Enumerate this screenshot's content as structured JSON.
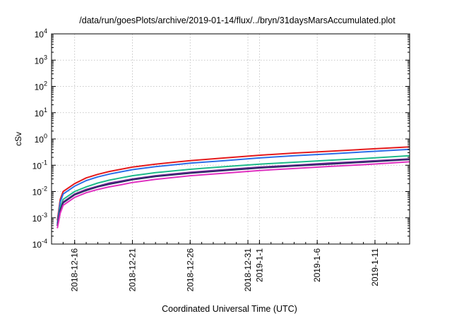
{
  "chart_data": {
    "type": "line",
    "title": "/data/run/goesPlots/archive/2019-01-14/flux/../bryn/31daysMarsAccumulated.plot",
    "xlabel": "Coordinated Universal Time (UTC)",
    "ylabel": "cSv",
    "yscale": "log",
    "ylim": [
      0.0001,
      10000
    ],
    "xlim": [
      "2018-12-14",
      "2019-01-14"
    ],
    "grid": true,
    "legend": "none",
    "y_ticks": [
      {
        "base": "10",
        "exp": "-4",
        "value": 0.0001
      },
      {
        "base": "10",
        "exp": "-3",
        "value": 0.001
      },
      {
        "base": "10",
        "exp": "-2",
        "value": 0.01
      },
      {
        "base": "10",
        "exp": "-1",
        "value": 0.1
      },
      {
        "base": "10",
        "exp": "0",
        "value": 1
      },
      {
        "base": "10",
        "exp": "1",
        "value": 10
      },
      {
        "base": "10",
        "exp": "2",
        "value": 100
      },
      {
        "base": "10",
        "exp": "3",
        "value": 1000
      },
      {
        "base": "10",
        "exp": "4",
        "value": 10000
      }
    ],
    "x_ticks": [
      {
        "label": "2018-12-16",
        "date": "2018-12-16"
      },
      {
        "label": "2018-12-21",
        "date": "2018-12-21"
      },
      {
        "label": "2018-12-26",
        "date": "2018-12-26"
      },
      {
        "label": "2018-12-31",
        "date": "2018-12-31"
      },
      {
        "label": "2019-1-1",
        "date": "2019-01-01"
      },
      {
        "label": "2019-1-6",
        "date": "2019-01-06"
      },
      {
        "label": "2019-1-11",
        "date": "2019-01-11"
      }
    ],
    "series": [
      {
        "color": "#e41a1c",
        "points": [
          [
            "2018-12-14T12:00",
            0.0008
          ],
          [
            "2018-12-14T18:00",
            0.005
          ],
          [
            "2018-12-15",
            0.01
          ],
          [
            "2018-12-16",
            0.02
          ],
          [
            "2018-12-17",
            0.033
          ],
          [
            "2018-12-18",
            0.045
          ],
          [
            "2018-12-19",
            0.058
          ],
          [
            "2018-12-20",
            0.07
          ],
          [
            "2018-12-21",
            0.085
          ],
          [
            "2018-12-23",
            0.11
          ],
          [
            "2018-12-26",
            0.15
          ],
          [
            "2018-12-29",
            0.19
          ],
          [
            "2019-01-01",
            0.24
          ],
          [
            "2019-01-04",
            0.29
          ],
          [
            "2019-01-07",
            0.34
          ],
          [
            "2019-01-10",
            0.4
          ],
          [
            "2019-01-14",
            0.5
          ]
        ]
      },
      {
        "color": "#2b6ee8",
        "points": [
          [
            "2018-12-14T12:00",
            0.0006
          ],
          [
            "2018-12-14T18:00",
            0.004
          ],
          [
            "2018-12-15",
            0.008
          ],
          [
            "2018-12-16",
            0.016
          ],
          [
            "2018-12-17",
            0.026
          ],
          [
            "2018-12-18",
            0.036
          ],
          [
            "2018-12-19",
            0.046
          ],
          [
            "2018-12-20",
            0.056
          ],
          [
            "2018-12-21",
            0.068
          ],
          [
            "2018-12-23",
            0.088
          ],
          [
            "2018-12-26",
            0.12
          ],
          [
            "2018-12-29",
            0.15
          ],
          [
            "2019-01-01",
            0.19
          ],
          [
            "2019-01-04",
            0.23
          ],
          [
            "2019-01-07",
            0.27
          ],
          [
            "2019-01-10",
            0.32
          ],
          [
            "2019-01-14",
            0.4
          ]
        ]
      },
      {
        "color": "#1fba8a",
        "points": [
          [
            "2018-12-14T12:00",
            0.0005
          ],
          [
            "2018-12-14T18:00",
            0.0025
          ],
          [
            "2018-12-15",
            0.005
          ],
          [
            "2018-12-16",
            0.01
          ],
          [
            "2018-12-17",
            0.015
          ],
          [
            "2018-12-18",
            0.021
          ],
          [
            "2018-12-19",
            0.027
          ],
          [
            "2018-12-20",
            0.033
          ],
          [
            "2018-12-21",
            0.04
          ],
          [
            "2018-12-23",
            0.052
          ],
          [
            "2018-12-26",
            0.07
          ],
          [
            "2018-12-29",
            0.088
          ],
          [
            "2019-01-01",
            0.11
          ],
          [
            "2019-01-04",
            0.13
          ],
          [
            "2019-01-07",
            0.155
          ],
          [
            "2019-01-10",
            0.18
          ],
          [
            "2019-01-14",
            0.23
          ]
        ]
      },
      {
        "color": "#7a2a9a",
        "points": [
          [
            "2018-12-14T12:00",
            0.0005
          ],
          [
            "2018-12-14T18:00",
            0.002
          ],
          [
            "2018-12-15",
            0.004
          ],
          [
            "2018-12-16",
            0.008
          ],
          [
            "2018-12-17",
            0.012
          ],
          [
            "2018-12-18",
            0.016
          ],
          [
            "2018-12-19",
            0.021
          ],
          [
            "2018-12-20",
            0.025
          ],
          [
            "2018-12-21",
            0.03
          ],
          [
            "2018-12-23",
            0.04
          ],
          [
            "2018-12-26",
            0.054
          ],
          [
            "2018-12-29",
            0.068
          ],
          [
            "2019-01-01",
            0.085
          ],
          [
            "2019-01-04",
            0.1
          ],
          [
            "2019-01-07",
            0.12
          ],
          [
            "2019-01-10",
            0.14
          ],
          [
            "2019-01-14",
            0.175
          ]
        ]
      },
      {
        "color": "#2c2a66",
        "points": [
          [
            "2018-12-14T12:00",
            0.0005
          ],
          [
            "2018-12-14T18:00",
            0.002
          ],
          [
            "2018-12-15",
            0.0037
          ],
          [
            "2018-12-16",
            0.0075
          ],
          [
            "2018-12-17",
            0.011
          ],
          [
            "2018-12-18",
            0.015
          ],
          [
            "2018-12-19",
            0.019
          ],
          [
            "2018-12-20",
            0.023
          ],
          [
            "2018-12-21",
            0.028
          ],
          [
            "2018-12-23",
            0.037
          ],
          [
            "2018-12-26",
            0.05
          ],
          [
            "2018-12-29",
            0.063
          ],
          [
            "2019-01-01",
            0.079
          ],
          [
            "2019-01-04",
            0.094
          ],
          [
            "2019-01-07",
            0.11
          ],
          [
            "2019-01-10",
            0.13
          ],
          [
            "2019-01-14",
            0.165
          ]
        ]
      },
      {
        "color": "#e030c0",
        "points": [
          [
            "2018-12-14T12:00",
            0.0004
          ],
          [
            "2018-12-14T18:00",
            0.0015
          ],
          [
            "2018-12-15",
            0.003
          ],
          [
            "2018-12-16",
            0.006
          ],
          [
            "2018-12-17",
            0.009
          ],
          [
            "2018-12-18",
            0.012
          ],
          [
            "2018-12-19",
            0.015
          ],
          [
            "2018-12-20",
            0.018
          ],
          [
            "2018-12-21",
            0.022
          ],
          [
            "2018-12-23",
            0.029
          ],
          [
            "2018-12-26",
            0.04
          ],
          [
            "2018-12-29",
            0.05
          ],
          [
            "2019-01-01",
            0.063
          ],
          [
            "2019-01-04",
            0.075
          ],
          [
            "2019-01-07",
            0.09
          ],
          [
            "2019-01-10",
            0.105
          ],
          [
            "2019-01-14",
            0.135
          ]
        ]
      }
    ]
  }
}
